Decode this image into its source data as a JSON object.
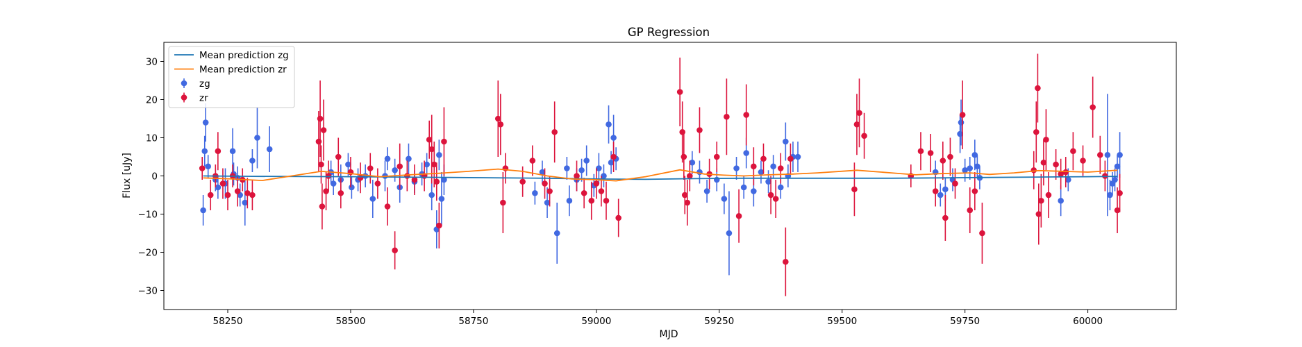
{
  "chart_data": {
    "type": "scatter",
    "title": "GP Regression",
    "xlabel": "MJD",
    "ylabel": "Flux [uJy]",
    "xlim": [
      58120,
      60180
    ],
    "ylim": [
      -35,
      35
    ],
    "xticks": [
      58250,
      58500,
      58750,
      59000,
      59250,
      59500,
      59750,
      60000
    ],
    "yticks": [
      -30,
      -20,
      -10,
      0,
      10,
      20,
      30
    ],
    "grid": false,
    "legend_position": "top-left",
    "legend": [
      {
        "label": "Mean prediction zg",
        "kind": "line",
        "color": "#1f77b4"
      },
      {
        "label": "Mean prediction zr",
        "kind": "line",
        "color": "#ff7f0e"
      },
      {
        "label": "zg",
        "kind": "errorbar",
        "color": "#4169e1"
      },
      {
        "label": "zr",
        "kind": "errorbar",
        "color": "#dc143c"
      }
    ],
    "lines": [
      {
        "name": "Mean prediction zg",
        "color": "#1f77b4",
        "x": [
          58200,
          58300,
          58500,
          58700,
          58900,
          59000,
          59100,
          59200,
          59300,
          59400,
          59500,
          59600,
          59700,
          59800,
          59900,
          60000,
          60060
        ],
        "y": [
          0.0,
          -0.1,
          -0.2,
          -0.4,
          -0.6,
          -0.8,
          -0.9,
          -0.7,
          -0.6,
          -0.6,
          -0.6,
          -0.6,
          -0.5,
          -0.4,
          -0.3,
          -0.2,
          -0.1
        ]
      },
      {
        "name": "Mean prediction zr",
        "color": "#ff7f0e",
        "x": [
          58200,
          58260,
          58320,
          58380,
          58440,
          58500,
          58560,
          58620,
          58680,
          58740,
          58800,
          58850,
          58900,
          58950,
          59000,
          59040,
          59100,
          59170,
          59220,
          59260,
          59300,
          59350,
          59400,
          59450,
          59530,
          59600,
          59650,
          59700,
          59760,
          59800,
          59850,
          59900,
          59950,
          60000,
          60060
        ],
        "y": [
          -0.5,
          -0.8,
          -1.2,
          0.0,
          1.2,
          0.6,
          -0.2,
          0.3,
          0.7,
          1.2,
          1.8,
          1.2,
          0.0,
          -0.8,
          -1.0,
          -1.3,
          -0.2,
          1.6,
          0.5,
          0.2,
          0.0,
          0.3,
          0.5,
          0.8,
          1.5,
          0.8,
          0.3,
          0.6,
          0.8,
          0.4,
          0.8,
          1.4,
          1.2,
          1.0,
          1.5
        ]
      }
    ],
    "series": [
      {
        "name": "zg",
        "color": "#4169e1",
        "points": [
          [
            58200,
            -9,
            4
          ],
          [
            58203,
            6.5,
            4
          ],
          [
            58205,
            14,
            5
          ],
          [
            58210,
            2.5,
            3
          ],
          [
            58225,
            -1,
            3
          ],
          [
            58230,
            -3,
            3
          ],
          [
            58245,
            -2,
            4
          ],
          [
            58260,
            6.5,
            6
          ],
          [
            58262,
            0.5,
            3
          ],
          [
            58270,
            -0.5,
            3
          ],
          [
            58275,
            -5,
            3
          ],
          [
            58285,
            -7,
            6
          ],
          [
            58300,
            4,
            3
          ],
          [
            58310,
            10,
            8
          ],
          [
            58335,
            7,
            6
          ],
          [
            58460,
            1,
            3
          ],
          [
            58465,
            -2,
            3
          ],
          [
            58480,
            -1,
            4
          ],
          [
            58495,
            3,
            3
          ],
          [
            58502,
            -3,
            3
          ],
          [
            58515,
            -1,
            3
          ],
          [
            58530,
            0,
            3
          ],
          [
            58545,
            -6,
            5
          ],
          [
            58570,
            0,
            4
          ],
          [
            58575,
            4.5,
            3
          ],
          [
            58590,
            1.5,
            3
          ],
          [
            58600,
            -3,
            4
          ],
          [
            58618,
            4.5,
            4
          ],
          [
            58630,
            -1.5,
            3
          ],
          [
            58645,
            0.5,
            3
          ],
          [
            58655,
            3,
            3
          ],
          [
            58665,
            -5,
            4
          ],
          [
            58675,
            -14,
            5
          ],
          [
            58680,
            5.5,
            4
          ],
          [
            58685,
            -6,
            7
          ],
          [
            58690,
            -1,
            4
          ],
          [
            58875,
            -4.5,
            3
          ],
          [
            58890,
            1,
            3
          ],
          [
            58900,
            -7,
            4
          ],
          [
            58920,
            -15,
            8
          ],
          [
            58940,
            2,
            3
          ],
          [
            58945,
            -6.5,
            4
          ],
          [
            58960,
            -1,
            3
          ],
          [
            58970,
            1.5,
            3
          ],
          [
            58980,
            4,
            4
          ],
          [
            58995,
            -2.5,
            3
          ],
          [
            59005,
            2,
            4
          ],
          [
            59015,
            0,
            3
          ],
          [
            59025,
            13.5,
            5
          ],
          [
            59030,
            3.5,
            3
          ],
          [
            59035,
            10,
            6
          ],
          [
            59040,
            4.5,
            3
          ],
          [
            59195,
            3.5,
            3
          ],
          [
            59210,
            1,
            3
          ],
          [
            59225,
            -4,
            3
          ],
          [
            59245,
            -1,
            3
          ],
          [
            59260,
            -6,
            4
          ],
          [
            59270,
            -15,
            11
          ],
          [
            59285,
            2,
            3
          ],
          [
            59300,
            -3,
            3
          ],
          [
            59305,
            6,
            4
          ],
          [
            59320,
            -4,
            4
          ],
          [
            59335,
            1,
            3
          ],
          [
            59350,
            -1.5,
            3
          ],
          [
            59360,
            2.5,
            3
          ],
          [
            59375,
            -3,
            3
          ],
          [
            59385,
            9,
            5
          ],
          [
            59390,
            0,
            3
          ],
          [
            59400,
            5,
            4
          ],
          [
            59410,
            5,
            4
          ],
          [
            59690,
            1,
            3
          ],
          [
            59700,
            -5,
            3
          ],
          [
            59710,
            -3.5,
            3
          ],
          [
            59725,
            -1,
            3
          ],
          [
            59740,
            11,
            5
          ],
          [
            59742,
            14,
            6
          ],
          [
            59750,
            1.5,
            3
          ],
          [
            59760,
            2,
            3
          ],
          [
            59770,
            5.5,
            4
          ],
          [
            59775,
            2.5,
            3
          ],
          [
            59780,
            -0.5,
            3
          ],
          [
            59945,
            -6.5,
            4
          ],
          [
            59960,
            -1,
            3
          ],
          [
            60040,
            5.5,
            16
          ],
          [
            60045,
            -5,
            4
          ],
          [
            60050,
            -2,
            3
          ],
          [
            60055,
            -1,
            3
          ],
          [
            60060,
            2.5,
            3
          ],
          [
            60065,
            5.5,
            6
          ]
        ]
      },
      {
        "name": "zr",
        "color": "#dc143c",
        "points": [
          [
            58198,
            2,
            3
          ],
          [
            58215,
            -5,
            4
          ],
          [
            58225,
            0,
            3
          ],
          [
            58230,
            6.5,
            5
          ],
          [
            58240,
            -2,
            4
          ],
          [
            58250,
            -5,
            4
          ],
          [
            58260,
            0,
            3
          ],
          [
            58270,
            -4,
            4
          ],
          [
            58280,
            -1,
            3
          ],
          [
            58290,
            -4.5,
            4
          ],
          [
            58300,
            -5,
            4
          ],
          [
            58435,
            9,
            8
          ],
          [
            58438,
            15,
            10
          ],
          [
            58440,
            3,
            5
          ],
          [
            58442,
            -8,
            6
          ],
          [
            58445,
            12,
            8
          ],
          [
            58450,
            -4,
            5
          ],
          [
            58455,
            0,
            4
          ],
          [
            58475,
            5,
            5
          ],
          [
            58480,
            -4.5,
            4
          ],
          [
            58500,
            1,
            4
          ],
          [
            58520,
            -0.5,
            4
          ],
          [
            58540,
            2,
            4
          ],
          [
            58555,
            -2,
            4
          ],
          [
            58575,
            -8,
            5
          ],
          [
            58590,
            -19.5,
            5
          ],
          [
            58600,
            2.5,
            6
          ],
          [
            58615,
            0,
            4
          ],
          [
            58630,
            -1,
            4
          ],
          [
            58650,
            0,
            4
          ],
          [
            58660,
            9.5,
            5
          ],
          [
            58665,
            7,
            9
          ],
          [
            58670,
            3,
            6
          ],
          [
            58675,
            -1.5,
            5
          ],
          [
            58680,
            -13,
            6
          ],
          [
            58690,
            9,
            9
          ],
          [
            58800,
            15,
            10
          ],
          [
            58805,
            13.5,
            8
          ],
          [
            58810,
            -7,
            8
          ],
          [
            58815,
            2,
            4
          ],
          [
            58850,
            -1.5,
            4
          ],
          [
            58870,
            4,
            4
          ],
          [
            58895,
            -2,
            4
          ],
          [
            58905,
            -4,
            4
          ],
          [
            58915,
            11.5,
            8
          ],
          [
            58960,
            0,
            4
          ],
          [
            58975,
            -4.5,
            4
          ],
          [
            58990,
            -6.5,
            5
          ],
          [
            59000,
            -2,
            4
          ],
          [
            59010,
            -4,
            4
          ],
          [
            59020,
            -6.5,
            5
          ],
          [
            59035,
            5,
            4
          ],
          [
            59045,
            -11,
            5
          ],
          [
            59170,
            22,
            9
          ],
          [
            59175,
            11.5,
            8
          ],
          [
            59178,
            5,
            6
          ],
          [
            59180,
            -5,
            5
          ],
          [
            59185,
            -7,
            6
          ],
          [
            59190,
            0,
            4
          ],
          [
            59210,
            12,
            6
          ],
          [
            59230,
            0.5,
            4
          ],
          [
            59245,
            5,
            4
          ],
          [
            59265,
            15.5,
            10
          ],
          [
            59290,
            -10.5,
            7
          ],
          [
            59305,
            16,
            8
          ],
          [
            59320,
            2.5,
            5
          ],
          [
            59340,
            4.5,
            4
          ],
          [
            59355,
            -5,
            5
          ],
          [
            59365,
            -6,
            5
          ],
          [
            59375,
            2,
            4
          ],
          [
            59385,
            -22.5,
            9
          ],
          [
            59395,
            4.5,
            4
          ],
          [
            59525,
            -3.5,
            7
          ],
          [
            59530,
            13.5,
            8
          ],
          [
            59535,
            16.5,
            9
          ],
          [
            59545,
            10.5,
            6
          ],
          [
            59640,
            0,
            3
          ],
          [
            59660,
            6.5,
            5
          ],
          [
            59680,
            6,
            5
          ],
          [
            59690,
            -4,
            4
          ],
          [
            59705,
            4,
            5
          ],
          [
            59710,
            -11,
            6
          ],
          [
            59720,
            5,
            5
          ],
          [
            59730,
            -2,
            4
          ],
          [
            59745,
            16,
            9
          ],
          [
            59760,
            -9,
            6
          ],
          [
            59770,
            -4,
            5
          ],
          [
            59785,
            -15,
            8
          ],
          [
            59890,
            1.5,
            5
          ],
          [
            59895,
            11.5,
            8
          ],
          [
            59898,
            23,
            9
          ],
          [
            59900,
            -10,
            8
          ],
          [
            59905,
            -6.5,
            7
          ],
          [
            59910,
            3.5,
            6
          ],
          [
            59915,
            9.5,
            8
          ],
          [
            59920,
            -5,
            6
          ],
          [
            59935,
            3,
            4
          ],
          [
            59945,
            0.5,
            4
          ],
          [
            59955,
            1,
            4
          ],
          [
            59970,
            6.5,
            5
          ],
          [
            59990,
            4,
            4
          ],
          [
            60010,
            18,
            8
          ],
          [
            60025,
            5.5,
            5
          ],
          [
            60035,
            0,
            4
          ],
          [
            60060,
            -9,
            6
          ],
          [
            60065,
            -4.5,
            5
          ]
        ]
      }
    ]
  }
}
